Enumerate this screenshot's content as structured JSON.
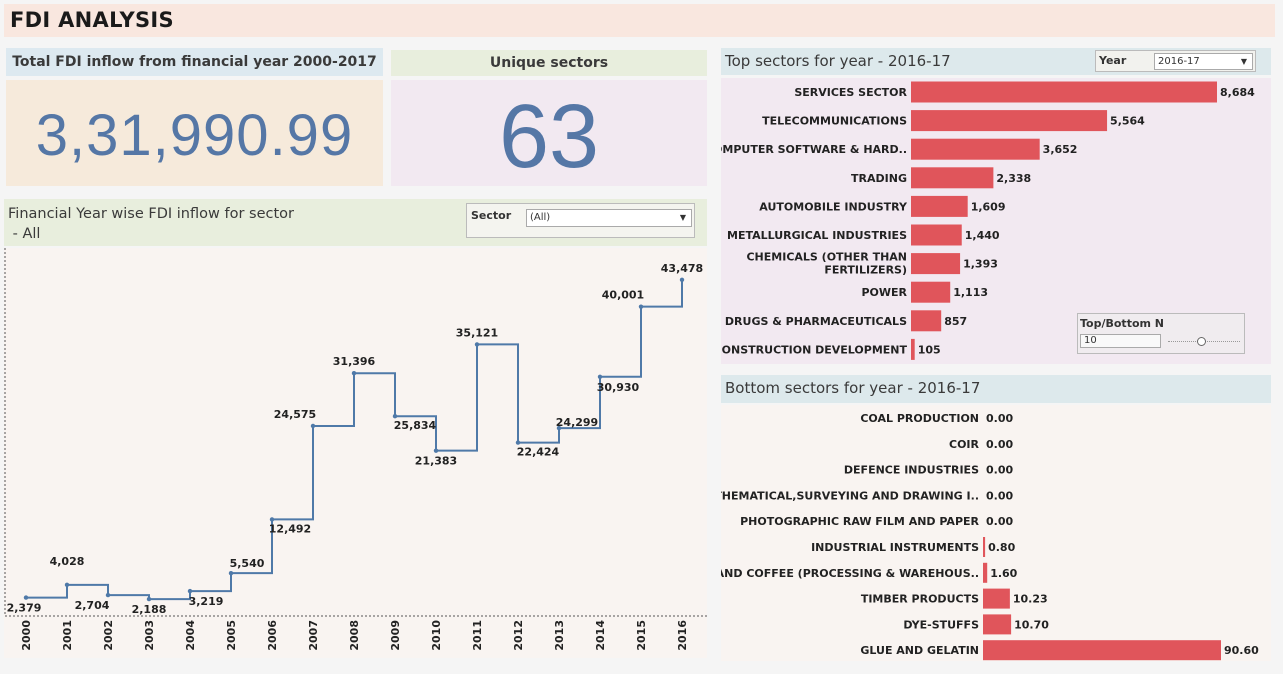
{
  "title": "FDI ANALYSIS",
  "kpi_total": {
    "label": "Total FDI inflow from financial year 2000-2017",
    "value": "3,31,990.99"
  },
  "kpi_sectors": {
    "label": "Unique sectors",
    "value": "63"
  },
  "line_panel": {
    "title_line1": "Financial Year wise FDI inflow for sector",
    "title_line2": " - All",
    "filter_label": "Sector",
    "filter_value": "(All)"
  },
  "top_panel": {
    "title": "Top sectors for year - 2016-17",
    "year_label": "Year",
    "year_value": "2016-17",
    "topn_label": "Top/Bottom N",
    "topn_value": "10"
  },
  "bottom_panel": {
    "title": "Bottom sectors for year - 2016-17"
  },
  "colors": {
    "bar": "#e0555b",
    "line": "#4f79a8"
  },
  "chart_data": [
    {
      "type": "line",
      "subtype": "step",
      "x": [
        "2000",
        "2001",
        "2002",
        "2003",
        "2004",
        "2005",
        "2006",
        "2007",
        "2008",
        "2009",
        "2010",
        "2011",
        "2012",
        "2013",
        "2014",
        "2015",
        "2016"
      ],
      "values": [
        2379,
        4028,
        2704,
        2188,
        3219,
        5540,
        12492,
        24575,
        31396,
        25834,
        21383,
        35121,
        22424,
        24299,
        30930,
        40001,
        43478
      ],
      "labels": [
        "2,379",
        "4,028",
        "2,704",
        "2,188",
        "3,219",
        "5,540",
        "12,492",
        "24,575",
        "31,396",
        "25,834",
        "21,383",
        "35,121",
        "22,424",
        "24,299",
        "30,930",
        "40,001",
        "43,478"
      ],
      "ylim": [
        0,
        45000
      ]
    },
    {
      "type": "bar",
      "orientation": "horizontal",
      "categories": [
        "SERVICES SECTOR",
        "TELECOMMUNICATIONS",
        "COMPUTER SOFTWARE & HARD..",
        "TRADING",
        "AUTOMOBILE INDUSTRY",
        "METALLURGICAL INDUSTRIES",
        "CHEMICALS (OTHER THAN FERTILIZERS)",
        "POWER",
        "DRUGS & PHARMACEUTICALS",
        "CONSTRUCTION DEVELOPMENT"
      ],
      "values": [
        8684,
        5564,
        3652,
        2338,
        1609,
        1440,
        1393,
        1113,
        857,
        105
      ],
      "labels": [
        "8,684",
        "5,564",
        "3,652",
        "2,338",
        "1,609",
        "1,440",
        "1,393",
        "1,113",
        "857",
        "105"
      ]
    },
    {
      "type": "bar",
      "orientation": "horizontal",
      "categories": [
        "COAL PRODUCTION",
        "COIR",
        "DEFENCE INDUSTRIES",
        "MATHEMATICAL,SURVEYING AND DRAWING I..",
        "PHOTOGRAPHIC RAW FILM AND PAPER",
        "INDUSTRIAL INSTRUMENTS",
        "TEA AND COFFEE (PROCESSING & WAREHOUS..",
        "TIMBER PRODUCTS",
        "DYE-STUFFS",
        "GLUE AND GELATIN"
      ],
      "values": [
        0.0,
        0.0,
        0.0,
        0.0,
        0.0,
        0.8,
        1.6,
        10.23,
        10.7,
        90.6
      ],
      "labels": [
        "0.00",
        "0.00",
        "0.00",
        "0.00",
        "0.00",
        "0.80",
        "1.60",
        "10.23",
        "10.70",
        "90.60"
      ]
    }
  ]
}
